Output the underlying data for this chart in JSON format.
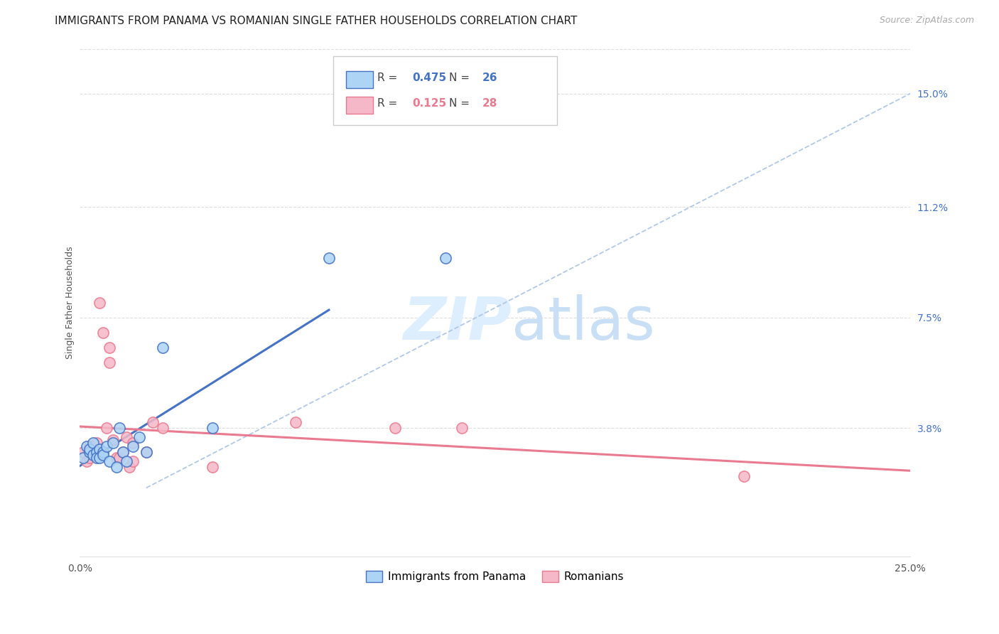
{
  "title": "IMMIGRANTS FROM PANAMA VS ROMANIAN SINGLE FATHER HOUSEHOLDS CORRELATION CHART",
  "source": "Source: ZipAtlas.com",
  "ylabel": "Single Father Households",
  "xlim": [
    0.0,
    0.25
  ],
  "ylim": [
    -0.005,
    0.165
  ],
  "xticks": [
    0.0,
    0.05,
    0.1,
    0.15,
    0.2,
    0.25
  ],
  "xtick_labels": [
    "0.0%",
    "",
    "",
    "",
    "",
    "25.0%"
  ],
  "ytick_labels_right": [
    "15.0%",
    "11.2%",
    "7.5%",
    "3.8%"
  ],
  "ytick_values_right": [
    0.15,
    0.112,
    0.075,
    0.038
  ],
  "R_panama": 0.475,
  "N_panama": 26,
  "R_romanian": 0.125,
  "N_romanian": 28,
  "panama_color": "#add4f5",
  "romanian_color": "#f5b8c8",
  "panama_line_color": "#4472c4",
  "romanian_line_color": "#e97a8f",
  "dashed_line_color": "#b0c8e8",
  "background_color": "#ffffff",
  "watermark_color": "#ddeeff",
  "panama_scatter_x": [
    0.001,
    0.002,
    0.003,
    0.003,
    0.004,
    0.004,
    0.005,
    0.005,
    0.006,
    0.006,
    0.007,
    0.007,
    0.008,
    0.009,
    0.01,
    0.011,
    0.012,
    0.013,
    0.014,
    0.016,
    0.018,
    0.02,
    0.025,
    0.04,
    0.075,
    0.11
  ],
  "panama_scatter_y": [
    0.028,
    0.032,
    0.03,
    0.031,
    0.029,
    0.033,
    0.03,
    0.028,
    0.031,
    0.028,
    0.03,
    0.029,
    0.032,
    0.027,
    0.033,
    0.025,
    0.038,
    0.03,
    0.027,
    0.032,
    0.035,
    0.03,
    0.065,
    0.038,
    0.095,
    0.095
  ],
  "romanian_scatter_x": [
    0.001,
    0.002,
    0.003,
    0.003,
    0.004,
    0.004,
    0.005,
    0.006,
    0.007,
    0.008,
    0.009,
    0.009,
    0.01,
    0.011,
    0.012,
    0.013,
    0.014,
    0.015,
    0.016,
    0.016,
    0.02,
    0.022,
    0.025,
    0.04,
    0.065,
    0.095,
    0.115,
    0.2
  ],
  "romanian_scatter_y": [
    0.03,
    0.027,
    0.028,
    0.032,
    0.031,
    0.03,
    0.033,
    0.08,
    0.07,
    0.038,
    0.065,
    0.06,
    0.034,
    0.028,
    0.028,
    0.03,
    0.035,
    0.025,
    0.033,
    0.027,
    0.03,
    0.04,
    0.038,
    0.025,
    0.04,
    0.038,
    0.038,
    0.022
  ],
  "title_fontsize": 11,
  "source_fontsize": 9,
  "axis_label_fontsize": 9,
  "tick_fontsize": 10
}
